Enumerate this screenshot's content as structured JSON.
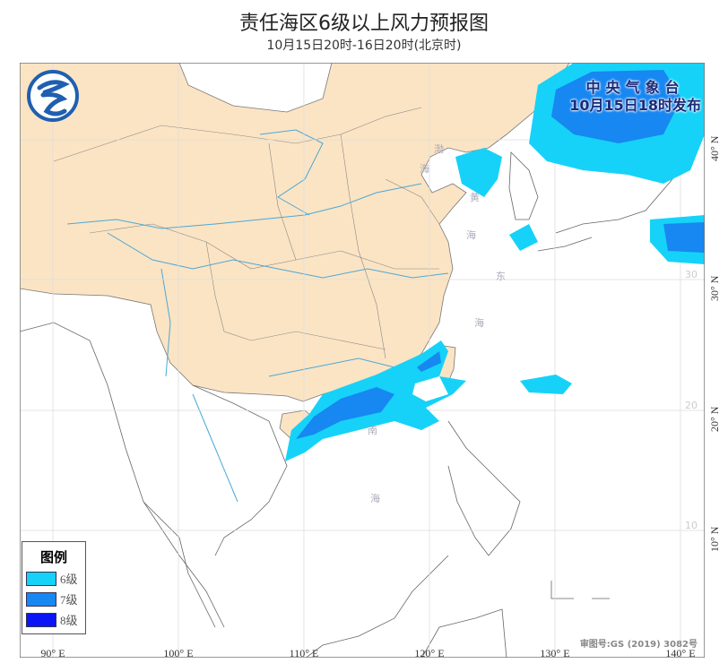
{
  "title": "责任海区6级以上风力预报图",
  "subtitle": "10月15日20时-16日20时(北京时)",
  "issuer": {
    "name": "中央气象台",
    "issued": "10月15日18时发布"
  },
  "approval": "审图号:GS (2019) 3082号",
  "legend": {
    "title": "图例",
    "items": [
      {
        "label": "6级",
        "color": "#16d2f8"
      },
      {
        "label": "7级",
        "color": "#1787f2"
      },
      {
        "label": "8级",
        "color": "#0a14f5"
      }
    ]
  },
  "axes": {
    "lon_labels": [
      "90° E",
      "100° E",
      "110° E",
      "120° E",
      "130° E",
      "140° E"
    ],
    "lat_labels": [
      "40° N",
      "30° N",
      "20° N",
      "10° N"
    ],
    "grid_labels": [
      "30",
      "20",
      "10"
    ]
  },
  "seas": {
    "bohai": [
      "渤",
      "海"
    ],
    "huanghai": [
      "黄",
      "海"
    ],
    "donghai": [
      "东",
      "海"
    ],
    "nanhai": [
      "南",
      "海"
    ]
  },
  "colors": {
    "land_china": "#fbe4c4",
    "coast": "#666666",
    "river": "#4aa8d8"
  }
}
